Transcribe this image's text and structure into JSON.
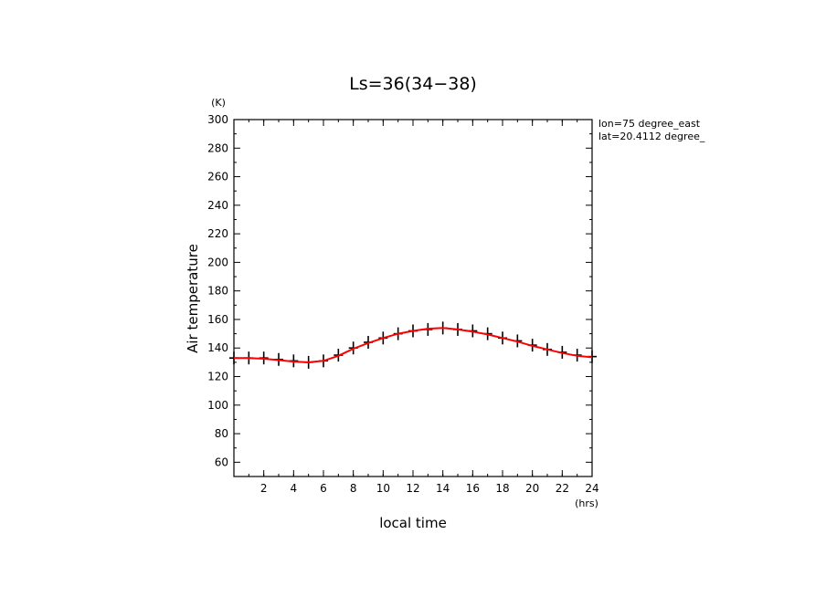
{
  "chart_data": {
    "type": "line",
    "title": "Ls=36(34−38)",
    "xlabel": "local time",
    "ylabel": "Air temperature",
    "x_unit": "(hrs)",
    "y_unit": "(K)",
    "xlim": [
      0,
      24
    ],
    "ylim": [
      50,
      300
    ],
    "x_ticks": [
      2,
      4,
      6,
      8,
      10,
      12,
      14,
      16,
      18,
      20,
      22,
      24
    ],
    "y_ticks": [
      60,
      80,
      100,
      120,
      140,
      160,
      180,
      200,
      220,
      240,
      260,
      280,
      300
    ],
    "grid": false,
    "annotations": [
      "lon=75 degree_east",
      "lat=20.4112 degree_"
    ],
    "series": [
      {
        "style": "markers-with-errorbars",
        "color": "#000000",
        "x": [
          0,
          1,
          2,
          3,
          4,
          5,
          6,
          7,
          8,
          9,
          10,
          11,
          12,
          13,
          14,
          15,
          16,
          17,
          18,
          19,
          20,
          21,
          22,
          23,
          24
        ],
        "y": [
          133,
          133,
          133,
          132,
          131,
          130,
          131,
          135,
          140,
          144,
          147,
          150,
          152,
          153,
          154,
          153,
          152,
          150,
          147,
          145,
          142,
          139,
          137,
          135,
          134
        ]
      },
      {
        "style": "line",
        "color": "#ff0000",
        "x": [
          0,
          1,
          2,
          3,
          4,
          5,
          6,
          7,
          8,
          9,
          10,
          11,
          12,
          13,
          14,
          15,
          16,
          17,
          18,
          19,
          20,
          21,
          22,
          23,
          24
        ],
        "y": [
          133,
          133,
          132.5,
          131.5,
          130.5,
          130,
          131,
          134.5,
          139.5,
          143.5,
          147,
          150,
          152,
          153.5,
          154,
          153,
          151.5,
          149.5,
          147,
          144.5,
          141.5,
          139,
          136.5,
          134.5,
          133.5
        ]
      }
    ]
  }
}
